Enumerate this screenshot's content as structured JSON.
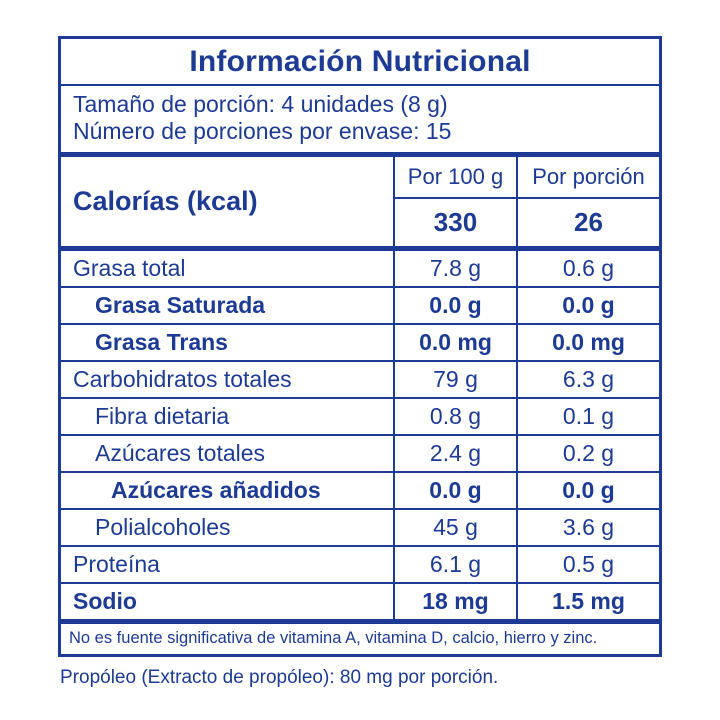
{
  "colors": {
    "accent": "#1d3a94",
    "background": "#ffffff"
  },
  "header": {
    "title": "Información Nutricional"
  },
  "serving": {
    "size": "Tamaño de porción: 4 unidades (8 g)",
    "count": "Número de porciones por envase: 15"
  },
  "calories": {
    "label": "Calorías (kcal)",
    "columns": [
      "Por 100 g",
      "Por porción"
    ],
    "per_100g": "330",
    "per_serving": "26"
  },
  "table": {
    "rows": [
      {
        "label": "Grasa total",
        "per_100g": "7.8 g",
        "per_serving": "0.6 g",
        "bold": false,
        "indent": 0
      },
      {
        "label": "Grasa Saturada",
        "per_100g": "0.0 g",
        "per_serving": "0.0 g",
        "bold": true,
        "indent": 1
      },
      {
        "label": "Grasa Trans",
        "per_100g": "0.0 mg",
        "per_serving": "0.0 mg",
        "bold": true,
        "indent": 1
      },
      {
        "label": "Carbohidratos totales",
        "per_100g": "79 g",
        "per_serving": "6.3 g",
        "bold": false,
        "indent": 0
      },
      {
        "label": "Fibra dietaria",
        "per_100g": "0.8 g",
        "per_serving": "0.1 g",
        "bold": false,
        "indent": 1
      },
      {
        "label": "Azúcares totales",
        "per_100g": "2.4 g",
        "per_serving": "0.2 g",
        "bold": false,
        "indent": 1
      },
      {
        "label": "Azúcares añadidos",
        "per_100g": "0.0 g",
        "per_serving": "0.0 g",
        "bold": true,
        "indent": 2
      },
      {
        "label": "Polialcoholes",
        "per_100g": "45 g",
        "per_serving": "3.6 g",
        "bold": false,
        "indent": 1
      },
      {
        "label": "Proteína",
        "per_100g": "6.1 g",
        "per_serving": "0.5 g",
        "bold": false,
        "indent": 0
      },
      {
        "label": "Sodio",
        "per_100g": "18 mg",
        "per_serving": "1.5 mg",
        "bold": true,
        "indent": 0
      }
    ]
  },
  "footnotes": {
    "vitamins": "No es fuente significativa de vitamina A, vitamina D, calcio, hierro y zinc.",
    "propolis": "Propóleo (Extracto de propóleo): 80 mg por porción."
  }
}
